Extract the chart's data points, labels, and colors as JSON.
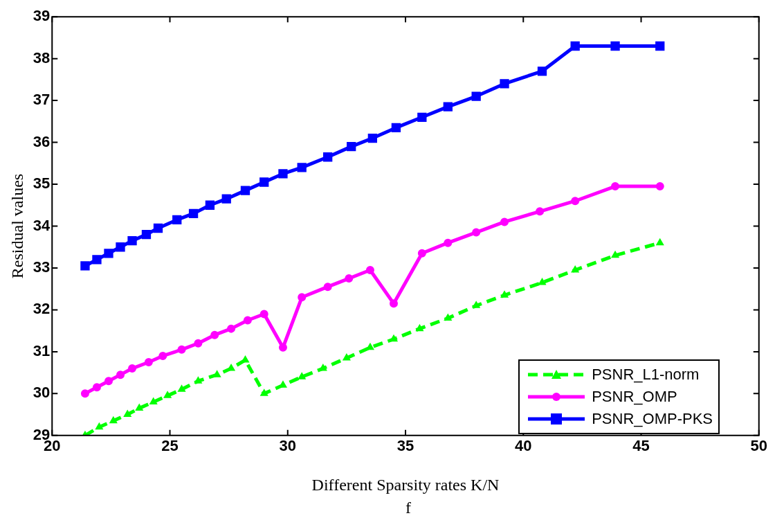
{
  "chart_data": {
    "type": "line",
    "xlabel": "Different Sparsity rates K/N",
    "ylabel": "Residual values",
    "annotations": [
      "f"
    ],
    "xlim": [
      20,
      50
    ],
    "xticks": [
      20,
      25,
      30,
      35,
      40,
      45,
      50
    ],
    "ylim": [
      29,
      39
    ],
    "yticks": [
      29,
      30,
      31,
      32,
      33,
      34,
      35,
      36,
      37,
      38,
      39
    ],
    "grid": false,
    "legend": "bottom right",
    "series": [
      {
        "name": "PSNR_L1-norm",
        "color": "#00ff00",
        "line_style": "dashed",
        "marker": "triangle",
        "x": [
          21.4,
          22.0,
          22.6,
          23.2,
          23.7,
          24.3,
          24.9,
          25.5,
          26.2,
          27.0,
          27.6,
          28.2,
          29.0,
          29.8,
          30.6,
          31.5,
          32.5,
          33.5,
          34.5,
          35.6,
          36.8,
          38.0,
          39.2,
          40.8,
          42.2,
          43.9,
          45.8
        ],
        "values": [
          29.0,
          29.2,
          29.35,
          29.5,
          29.65,
          29.8,
          29.95,
          30.1,
          30.3,
          30.45,
          30.6,
          30.8,
          30.0,
          30.2,
          30.4,
          30.6,
          30.85,
          31.1,
          31.3,
          31.55,
          31.8,
          32.1,
          32.35,
          32.65,
          32.95,
          33.3,
          33.6
        ]
      },
      {
        "name": "PSNR_OMP",
        "color": "#ff00ff",
        "line_style": "solid",
        "marker": "circle",
        "x": [
          21.4,
          21.9,
          22.4,
          22.9,
          23.4,
          24.1,
          24.7,
          25.5,
          26.2,
          26.9,
          27.6,
          28.3,
          29.0,
          29.8,
          30.6,
          31.7,
          32.6,
          33.5,
          34.5,
          35.7,
          36.8,
          38.0,
          39.2,
          40.7,
          42.2,
          43.9,
          45.8
        ],
        "values": [
          30.0,
          30.15,
          30.3,
          30.45,
          30.6,
          30.75,
          30.9,
          31.05,
          31.2,
          31.4,
          31.55,
          31.75,
          31.9,
          31.1,
          32.3,
          32.55,
          32.75,
          32.95,
          32.15,
          33.35,
          33.6,
          33.85,
          34.1,
          34.35,
          34.6,
          34.95,
          34.95
        ]
      },
      {
        "name": "PSNR_OMP-PKS",
        "color": "#0000ff",
        "line_style": "solid",
        "marker": "square",
        "x": [
          21.4,
          21.9,
          22.4,
          22.9,
          23.4,
          24.0,
          24.5,
          25.3,
          26.0,
          26.7,
          27.4,
          28.2,
          29.0,
          29.8,
          30.6,
          31.7,
          32.7,
          33.6,
          34.6,
          35.7,
          36.8,
          38.0,
          39.2,
          40.8,
          42.2,
          43.9,
          45.8
        ],
        "values": [
          33.05,
          33.2,
          33.35,
          33.5,
          33.65,
          33.8,
          33.95,
          34.15,
          34.3,
          34.5,
          34.65,
          34.85,
          35.05,
          35.25,
          35.4,
          35.65,
          35.9,
          36.1,
          36.35,
          36.6,
          36.85,
          37.1,
          37.4,
          37.7,
          38.3,
          38.3,
          38.3
        ]
      }
    ]
  }
}
